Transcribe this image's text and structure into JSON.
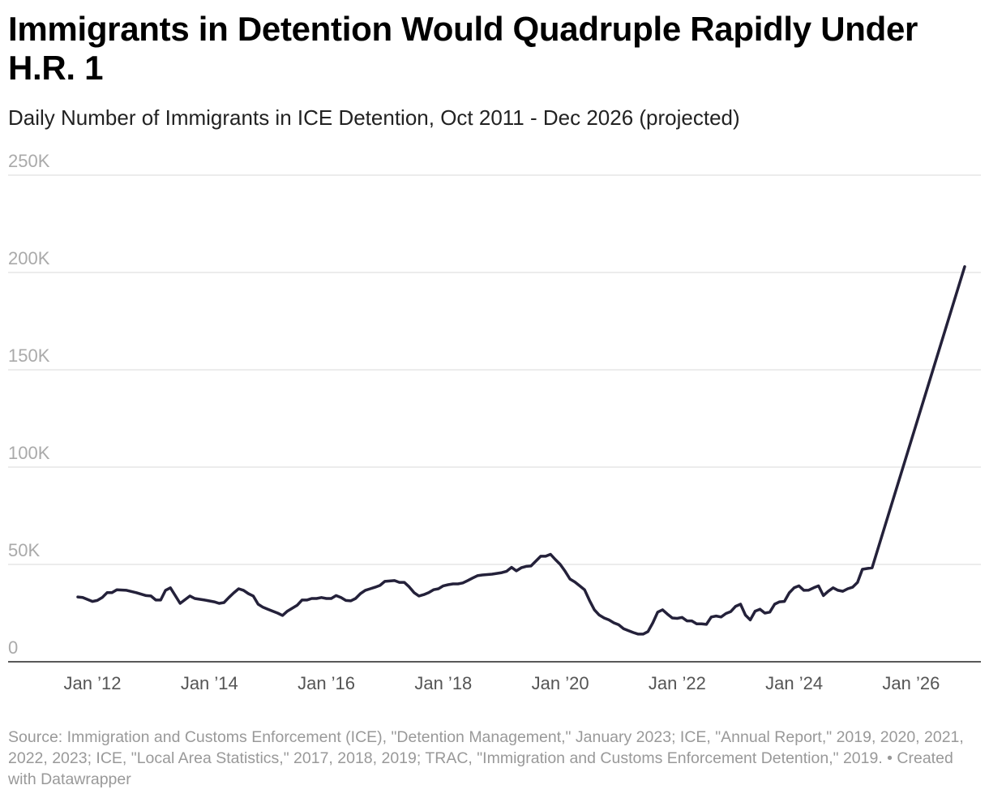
{
  "chart_data": {
    "type": "line",
    "title": "Immigrants in Detention Would Quadruple Rapidly Under H.R. 1",
    "subtitle": "Daily Number of Immigrants in ICE Detention, Oct 2011 - Dec 2026 (projected)",
    "source": "Source: Immigration and Customs Enforcement (ICE), \"Detention Management,\" January 2023; ICE, \"Annual Report,\" 2019, 2020, 2021, 2022, 2023; ICE, \"Local Area Statistics,\" 2017, 2018, 2019; TRAC, \"Immigration and Customs Enforcement Detention,\" 2019. • Created with Datawrapper",
    "color": "#24213a",
    "grid": true,
    "xlim": [
      "2011-10",
      "2026-12"
    ],
    "xticks": [
      {
        "value": "2012-01",
        "label": "Jan ’12"
      },
      {
        "value": "2014-01",
        "label": "Jan ’14"
      },
      {
        "value": "2016-01",
        "label": "Jan ’16"
      },
      {
        "value": "2018-01",
        "label": "Jan ’18"
      },
      {
        "value": "2020-01",
        "label": "Jan ’20"
      },
      {
        "value": "2022-01",
        "label": "Jan ’22"
      },
      {
        "value": "2024-01",
        "label": "Jan ’24"
      },
      {
        "value": "2026-01",
        "label": "Jan ’26"
      }
    ],
    "ylim": [
      0,
      250000
    ],
    "yticks": [
      0,
      {
        "value": 50000,
        "label": "50K"
      },
      {
        "value": 100000,
        "label": "100K"
      },
      {
        "value": 150000,
        "label": "150K"
      },
      {
        "value": 200000,
        "label": "200K"
      },
      {
        "value": 250000,
        "label": "250K"
      }
    ],
    "x": [
      "2011-10",
      "2011-11",
      "2012-01",
      "2012-02",
      "2012-03",
      "2012-04",
      "2012-05",
      "2012-06",
      "2012-08",
      "2012-10",
      "2012-12",
      "2013-01",
      "2013-02",
      "2013-03",
      "2013-04",
      "2013-05",
      "2013-07",
      "2013-09",
      "2013-10",
      "2013-12",
      "2014-02",
      "2014-03",
      "2014-04",
      "2014-05",
      "2014-06",
      "2014-07",
      "2014-08",
      "2014-09",
      "2014-10",
      "2014-11",
      "2014-12",
      "2015-01",
      "2015-02",
      "2015-03",
      "2015-04",
      "2015-05",
      "2015-06",
      "2015-07",
      "2015-08",
      "2015-09",
      "2015-10",
      "2015-11",
      "2015-12",
      "2016-01",
      "2016-02",
      "2016-03",
      "2016-04",
      "2016-05",
      "2016-06",
      "2016-07",
      "2016-08",
      "2016-09",
      "2016-10",
      "2016-11",
      "2016-12",
      "2017-01",
      "2017-02",
      "2017-03",
      "2017-04",
      "2017-05",
      "2017-06",
      "2017-07",
      "2017-08",
      "2017-09",
      "2017-10",
      "2017-11",
      "2017-12",
      "2018-01",
      "2018-02",
      "2018-03",
      "2018-04",
      "2018-05",
      "2018-06",
      "2018-07",
      "2018-08",
      "2018-09",
      "2018-11",
      "2019-01",
      "2019-02",
      "2019-03",
      "2019-04",
      "2019-05",
      "2019-06",
      "2019-07",
      "2019-08",
      "2019-09",
      "2019-10",
      "2019-11",
      "2019-12",
      "2020-01",
      "2020-02",
      "2020-03",
      "2020-04",
      "2020-05",
      "2020-06",
      "2020-07",
      "2020-08",
      "2020-09",
      "2020-10",
      "2020-11",
      "2020-12",
      "2021-01",
      "2021-02",
      "2021-03",
      "2021-04",
      "2021-05",
      "2021-06",
      "2021-07",
      "2021-08",
      "2021-09",
      "2021-10",
      "2021-11",
      "2021-12",
      "2022-01",
      "2022-02",
      "2022-03",
      "2022-04",
      "2022-05",
      "2022-06",
      "2022-07",
      "2022-08",
      "2022-09",
      "2022-10",
      "2022-11",
      "2022-12",
      "2023-01",
      "2023-02",
      "2023-03",
      "2023-04",
      "2023-05",
      "2023-06",
      "2023-07",
      "2023-08",
      "2023-09",
      "2023-10",
      "2023-11",
      "2023-12",
      "2024-01",
      "2024-02",
      "2024-03",
      "2024-04",
      "2024-05",
      "2024-06",
      "2024-07",
      "2024-08",
      "2024-09",
      "2024-10",
      "2024-11",
      "2024-12",
      "2025-01",
      "2025-02",
      "2025-03",
      "2025-04",
      "2025-05",
      "2026-12"
    ],
    "values": [
      33300,
      33000,
      31000,
      31500,
      33000,
      35500,
      35500,
      37000,
      36700,
      35500,
      34000,
      33800,
      31700,
      31700,
      36700,
      38000,
      30000,
      33800,
      32500,
      31700,
      30800,
      30000,
      30400,
      33000,
      35400,
      37500,
      36700,
      35000,
      33800,
      29600,
      28000,
      27000,
      26000,
      25000,
      23800,
      26000,
      27500,
      29000,
      31700,
      31700,
      32500,
      32500,
      33000,
      32500,
      32500,
      34000,
      33000,
      31500,
      31300,
      32500,
      35000,
      36700,
      37500,
      38300,
      39200,
      41300,
      41500,
      41700,
      40800,
      40800,
      38500,
      35500,
      33800,
      34500,
      35500,
      37000,
      37500,
      39000,
      39600,
      40000,
      40000,
      40500,
      41700,
      43000,
      44200,
      44600,
      45000,
      45800,
      46500,
      48500,
      46700,
      48300,
      49000,
      49200,
      51700,
      54200,
      54200,
      55200,
      52500,
      50000,
      46500,
      42500,
      41000,
      39000,
      37000,
      31500,
      26700,
      24000,
      22500,
      21500,
      20000,
      19000,
      17000,
      16000,
      15000,
      14200,
      14200,
      15500,
      20000,
      25500,
      26700,
      24500,
      22500,
      22300,
      22800,
      21000,
      21000,
      19500,
      19500,
      19200,
      23000,
      23500,
      23000,
      24800,
      25800,
      28500,
      29600,
      24000,
      21500,
      26000,
      27000,
      25000,
      25500,
      29600,
      30800,
      31000,
      35400,
      38000,
      39000,
      36700,
      36800,
      38000,
      39000,
      34000,
      36200,
      38000,
      36700,
      36200,
      37500,
      38300,
      40800,
      47500,
      47900,
      48300,
      203000
    ]
  }
}
